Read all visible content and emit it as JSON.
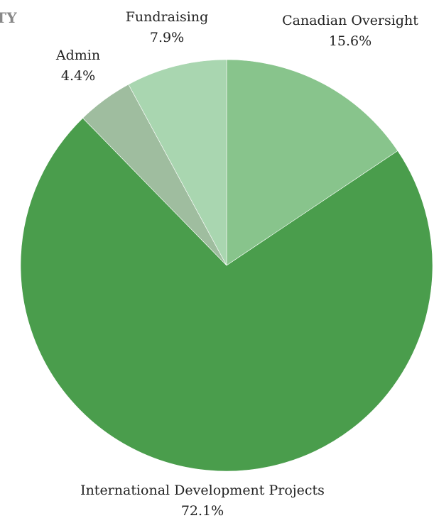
{
  "title_fragment": "TY",
  "chart_data": {
    "type": "pie",
    "title": "",
    "categories": [
      "Canadian Oversight",
      "International Development Projects",
      "Admin",
      "Fundraising"
    ],
    "values": [
      15.6,
      72.1,
      4.4,
      7.9
    ],
    "value_labels": [
      "15.6%",
      "72.1%",
      "4.4%",
      "7.9%"
    ],
    "unit": "%",
    "start_angle_deg": 0,
    "direction": "clockwise",
    "colors": [
      "#88c48c",
      "#4a9d4c",
      "#9fbd9f",
      "#a9d6b0"
    ],
    "legend": "none (labels outside slices)"
  }
}
